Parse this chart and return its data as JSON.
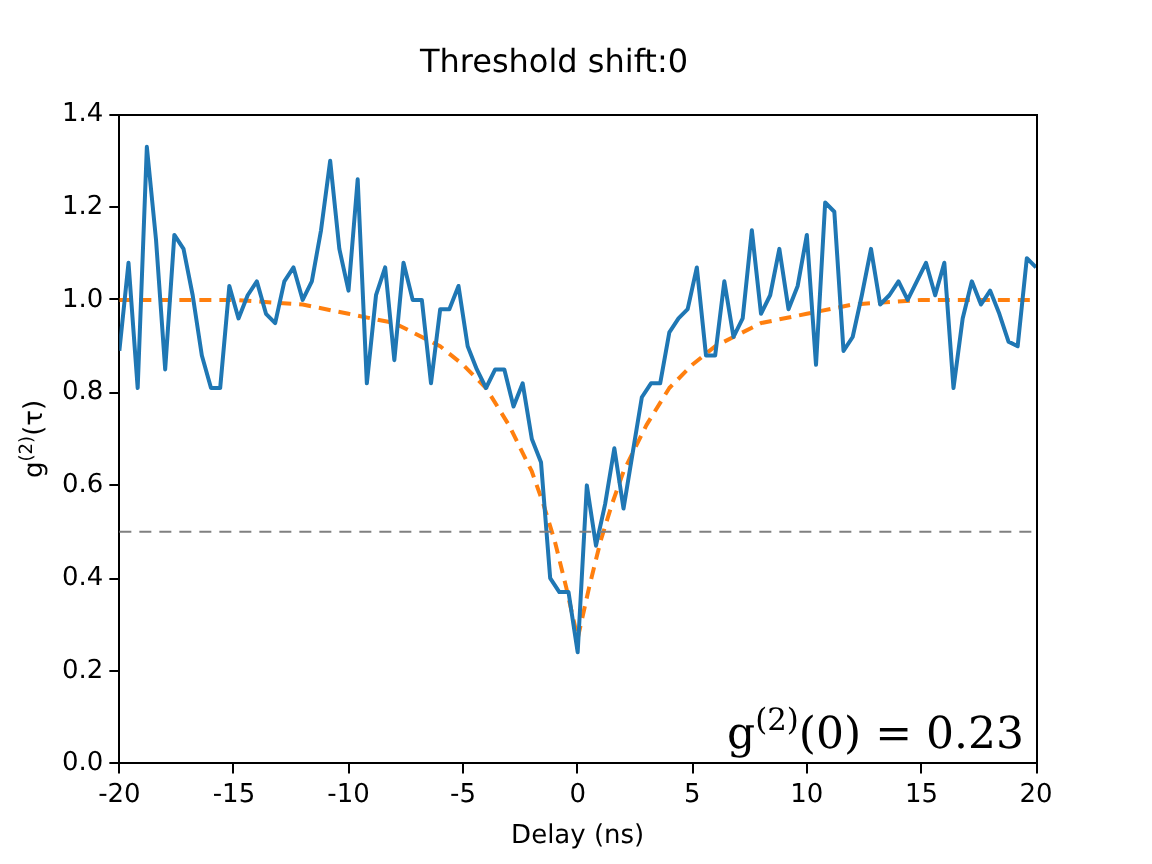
{
  "chart_data": {
    "type": "line",
    "title": "Threshold shift:0",
    "xlabel": "Delay (ns)",
    "ylabel": "g$^{(2)}$(τ)",
    "xlim": [
      -20,
      20
    ],
    "xticks": [
      -20,
      -15,
      -10,
      -5,
      0,
      5,
      10,
      15,
      20
    ],
    "ylim": [
      0,
      1.4
    ],
    "yticks": [
      {
        "value": 0,
        "label": "0.0"
      },
      0.2,
      0.4,
      0.6,
      0.8,
      {
        "value": 1,
        "label": "1.0"
      },
      1.2,
      1.4
    ],
    "grid": false,
    "legend": false,
    "marker": "none",
    "series": [
      {
        "color": "#1f77b4",
        "line_style": "solid",
        "x": [
          -20,
          -19.6,
          -19.2,
          -18.8,
          -18.4,
          -18,
          -17.6,
          -17.2,
          -16.8,
          -16.4,
          -16,
          -15.6,
          -15.2,
          -14.8,
          -14.4,
          -14,
          -13.6,
          -13.2,
          -12.8,
          -12.4,
          -12,
          -11.6,
          -11.2,
          -10.8,
          -10.4,
          -10,
          -9.6,
          -9.2,
          -8.8,
          -8.4,
          -8,
          -7.6,
          -7.2,
          -6.8,
          -6.4,
          -6,
          -5.6,
          -5.2,
          -4.8,
          -4.4,
          -4,
          -3.6,
          -3.2,
          -2.8,
          -2.4,
          -2,
          -1.6,
          -1.2,
          -0.8,
          -0.4,
          0,
          0.4,
          0.8,
          1.2,
          1.6,
          2,
          2.4,
          2.8,
          3.2,
          3.6,
          4,
          4.4,
          4.8,
          5.2,
          5.6,
          6,
          6.4,
          6.8,
          7.2,
          7.6,
          8,
          8.4,
          8.8,
          9.2,
          9.6,
          10,
          10.4,
          10.8,
          11.2,
          11.6,
          12,
          12.4,
          12.8,
          13.2,
          13.6,
          14,
          14.4,
          14.8,
          15.2,
          15.6,
          16,
          16.4,
          16.8,
          17.2,
          17.6,
          18,
          18.4,
          18.8,
          19.2,
          19.6,
          20
        ],
        "values": [
          0.89,
          1.08,
          0.81,
          1.33,
          1.13,
          0.85,
          1.14,
          1.11,
          1.01,
          0.88,
          0.81,
          0.81,
          1.03,
          0.96,
          1.01,
          1.04,
          0.97,
          0.95,
          1.04,
          1.07,
          1.0,
          1.04,
          1.15,
          1.3,
          1.11,
          1.02,
          1.26,
          0.82,
          1.01,
          1.07,
          0.87,
          1.08,
          1.0,
          1.0,
          0.82,
          0.98,
          0.98,
          1.03,
          0.9,
          0.85,
          0.81,
          0.85,
          0.85,
          0.77,
          0.82,
          0.7,
          0.65,
          0.4,
          0.37,
          0.37,
          0.24,
          0.6,
          0.47,
          0.56,
          0.68,
          0.55,
          0.67,
          0.79,
          0.82,
          0.82,
          0.93,
          0.96,
          0.98,
          1.07,
          0.88,
          0.88,
          1.04,
          0.92,
          0.96,
          1.15,
          0.97,
          1.01,
          1.11,
          0.98,
          1.03,
          1.14,
          0.86,
          1.21,
          1.19,
          0.89,
          0.92,
          1.01,
          1.11,
          0.99,
          1.01,
          1.04,
          1.0,
          1.04,
          1.08,
          1.01,
          1.08,
          0.81,
          0.96,
          1.04,
          0.99,
          1.02,
          0.97,
          0.91,
          0.9,
          1.09,
          1.07
        ]
      },
      {
        "type": "line",
        "color": "#ff7f0e",
        "line_style": "dashed",
        "x": [
          -20,
          -15,
          -12,
          -10,
          -8,
          -6,
          -5,
          -4,
          -3,
          -2,
          -1.5,
          -1,
          -0.5,
          0,
          0.5,
          1,
          1.5,
          2,
          3,
          4,
          5,
          6,
          8,
          10,
          12,
          15,
          20
        ],
        "values": [
          1.0,
          1.0,
          0.99,
          0.97,
          0.95,
          0.9,
          0.86,
          0.81,
          0.73,
          0.63,
          0.56,
          0.48,
          0.38,
          0.27,
          0.38,
          0.48,
          0.56,
          0.63,
          0.73,
          0.81,
          0.86,
          0.9,
          0.95,
          0.97,
          0.99,
          1.0,
          1.0
        ]
      }
    ],
    "ref_lines": [
      {
        "axis": "y",
        "value": 0.5,
        "color": "#808080",
        "line_style": "dashed"
      }
    ],
    "annotations": [
      "g$^{(2)}$(0) = 0.23"
    ]
  }
}
